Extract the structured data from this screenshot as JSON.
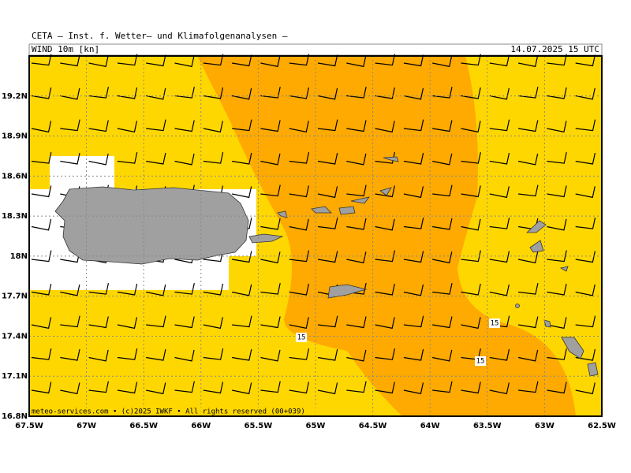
{
  "header": {
    "title": "CETA — Inst. f. Wetter— und Klimafolgenanalysen —",
    "field": "WIND 10m [kn]",
    "valid_time": "14.07.2025 15 UTC"
  },
  "map": {
    "lon_lim": [
      -67.5,
      -62.5
    ],
    "lat_lim": [
      16.8,
      19.5
    ],
    "lon_ticks": [
      {
        "value": -67.5,
        "label": "67.5W"
      },
      {
        "value": -67,
        "label": "67W"
      },
      {
        "value": -66.5,
        "label": "66.5W"
      },
      {
        "value": -66,
        "label": "66W"
      },
      {
        "value": -65.5,
        "label": "65.5W"
      },
      {
        "value": -65,
        "label": "65W"
      },
      {
        "value": -64.5,
        "label": "64.5W"
      },
      {
        "value": -64,
        "label": "64W"
      },
      {
        "value": -63.5,
        "label": "63.5W"
      },
      {
        "value": -63,
        "label": "63W"
      },
      {
        "value": -62.5,
        "label": "62.5W"
      }
    ],
    "lat_ticks": [
      {
        "value": 16.8,
        "label": "16.8N"
      },
      {
        "value": 17.1,
        "label": "17.1N"
      },
      {
        "value": 17.4,
        "label": "17.4N"
      },
      {
        "value": 17.7,
        "label": "17.7N"
      },
      {
        "value": 18,
        "label": "18N"
      },
      {
        "value": 18.3,
        "label": "18.3N"
      },
      {
        "value": 18.6,
        "label": "18.6N"
      },
      {
        "value": 18.9,
        "label": "18.9N"
      },
      {
        "value": 19.2,
        "label": "19.2N"
      }
    ],
    "contour_labels": [
      "15",
      "15",
      "15"
    ],
    "footer": "meteo-services.com • (c)2025 IWKF • All rights reserved (00+039)"
  }
}
